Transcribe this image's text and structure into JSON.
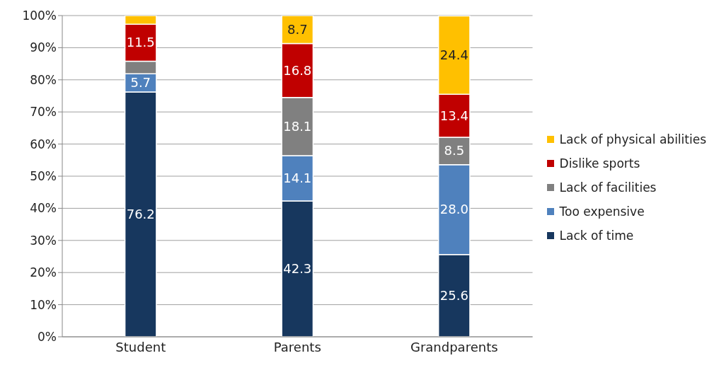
{
  "chart_data": {
    "type": "bar",
    "stacked": true,
    "categories": [
      "Student",
      "Parents",
      "Grandparents"
    ],
    "series": [
      {
        "name": "Lack of time",
        "color": "#17375e",
        "values": [
          76.2,
          42.3,
          25.6
        ],
        "value_labels": [
          "76.2",
          "42.3",
          "25.6"
        ]
      },
      {
        "name": "Too expensive",
        "color": "#4f81bd",
        "values": [
          5.7,
          14.1,
          28.0
        ],
        "value_labels": [
          "5.7",
          "14.1",
          "28.0"
        ]
      },
      {
        "name": "Lack of facilities",
        "color": "#808080",
        "values": [
          3.9,
          18.1,
          8.5
        ],
        "value_labels": [
          null,
          "18.1",
          "8.5"
        ]
      },
      {
        "name": "Dislike sports",
        "color": "#c00000",
        "values": [
          11.5,
          16.8,
          13.4
        ],
        "value_labels": [
          "11.5",
          "16.8",
          "13.4"
        ]
      },
      {
        "name": "Lack of physical abilities",
        "color": "#ffc000",
        "values": [
          2.7,
          8.7,
          24.4
        ],
        "value_labels": [
          null,
          "8.7",
          "24.4"
        ]
      }
    ],
    "ylim": [
      0,
      100
    ],
    "yticks": [
      {
        "value": 0,
        "label": "0%"
      },
      {
        "value": 10,
        "label": "10%"
      },
      {
        "value": 20,
        "label": "20%"
      },
      {
        "value": 30,
        "label": "30%"
      },
      {
        "value": 40,
        "label": "40%"
      },
      {
        "value": 50,
        "label": "50%"
      },
      {
        "value": 60,
        "label": "60%"
      },
      {
        "value": 70,
        "label": "70%"
      },
      {
        "value": 80,
        "label": "80%"
      },
      {
        "value": 90,
        "label": "90%"
      },
      {
        "value": 100,
        "label": "100%"
      }
    ],
    "grid": "y",
    "legend": "right"
  }
}
